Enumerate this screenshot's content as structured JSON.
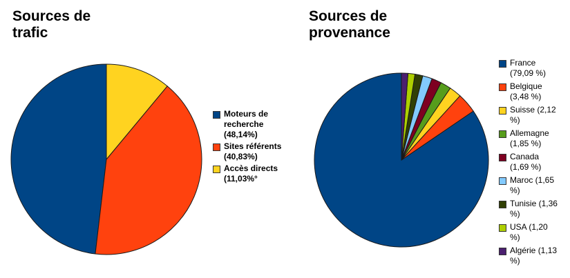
{
  "chart_data": [
    {
      "type": "pie",
      "title": "Sources de\ntrafic",
      "legend_position": "right",
      "series": [
        {
          "name": "Moteurs de recherche",
          "label": "Moteurs de recherche (48,14%)",
          "value": 48.14,
          "color": "#004586"
        },
        {
          "name": "Sites référents",
          "label": "Sites référents (40,83%)",
          "value": 40.83,
          "color": "#ff420e"
        },
        {
          "name": "Accès directs",
          "label": "Accès directs (11,03%°",
          "value": 11.03,
          "color": "#ffd320"
        }
      ]
    },
    {
      "type": "pie",
      "title": "Sources de\nprovenance",
      "legend_position": "right",
      "series": [
        {
          "name": "France",
          "label": "France (79,09 %)",
          "value": 79.09,
          "color": "#004586"
        },
        {
          "name": "Belgique",
          "label": "Belgique (3,48 %)",
          "value": 3.48,
          "color": "#ff420e"
        },
        {
          "name": "Suisse",
          "label": "Suisse (2,12 %)",
          "value": 2.12,
          "color": "#ffd320"
        },
        {
          "name": "Allemagne",
          "label": "Allemagne (1,85 %)",
          "value": 1.85,
          "color": "#579d1c"
        },
        {
          "name": "Canada",
          "label": "Canada (1,69 %)",
          "value": 1.69,
          "color": "#7e0021"
        },
        {
          "name": "Maroc",
          "label": "Maroc (1,65 %)",
          "value": 1.65,
          "color": "#83caff"
        },
        {
          "name": "Tunisie",
          "label": "Tunisie (1,36 %)",
          "value": 1.36,
          "color": "#314004"
        },
        {
          "name": "USA",
          "label": "USA (1,20 %)",
          "value": 1.2,
          "color": "#aecf00"
        },
        {
          "name": "Algérie",
          "label": "Algérie (1,13 %)",
          "value": 1.13,
          "color": "#4b1f6f"
        }
      ]
    }
  ]
}
